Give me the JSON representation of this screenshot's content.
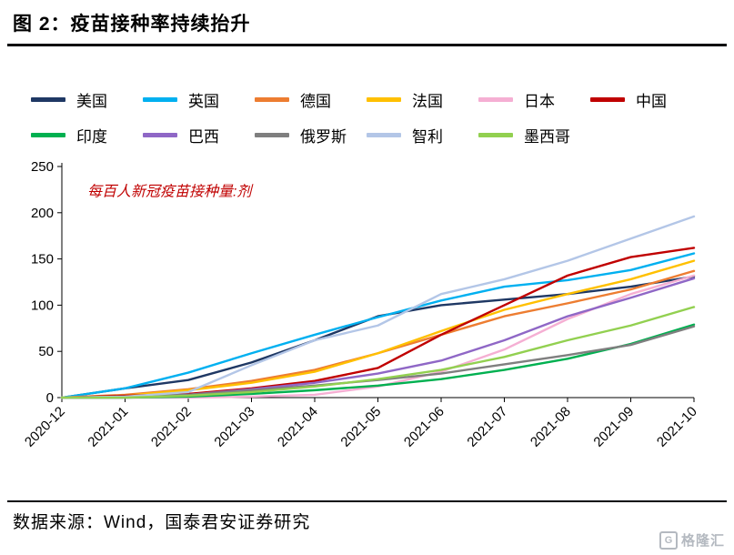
{
  "header": {
    "title": "图 2：疫苗接种率持续抬升"
  },
  "chart_data": {
    "type": "line",
    "title": "图 2：疫苗接种率持续抬升",
    "annotation": "每百人新冠疫苗接种量:剂",
    "annotation_color": "#C00000",
    "x": [
      "2020-12",
      "2021-01",
      "2021-02",
      "2021-03",
      "2021-04",
      "2021-05",
      "2021-06",
      "2021-07",
      "2021-08",
      "2021-09",
      "2021-10"
    ],
    "xlabel": "",
    "ylabel": "",
    "ylim": [
      0,
      250
    ],
    "yticks": [
      0,
      50,
      100,
      150,
      200,
      250
    ],
    "grid": false,
    "legend_position": "top",
    "series": [
      {
        "name": "美国",
        "key": "usa",
        "color": "#1F3864",
        "values": [
          0,
          10,
          19,
          38,
          62,
          88,
          100,
          106,
          112,
          120,
          131
        ]
      },
      {
        "name": "英国",
        "key": "uk",
        "color": "#00B0F0",
        "values": [
          0,
          10,
          27,
          48,
          68,
          87,
          105,
          120,
          127,
          138,
          156
        ]
      },
      {
        "name": "德国",
        "key": "germany",
        "color": "#ED7D31",
        "values": [
          0,
          3,
          9,
          18,
          30,
          48,
          68,
          88,
          102,
          117,
          137
        ]
      },
      {
        "name": "法国",
        "key": "france",
        "color": "#FFC000",
        "values": [
          0,
          2,
          8,
          16,
          28,
          48,
          72,
          95,
          112,
          128,
          148
        ]
      },
      {
        "name": "日本",
        "key": "japan",
        "color": "#F5AFD3",
        "values": [
          0,
          0,
          0,
          1,
          3,
          12,
          28,
          52,
          85,
          112,
          132
        ]
      },
      {
        "name": "中国",
        "key": "china",
        "color": "#C00000",
        "values": [
          0,
          2,
          4,
          10,
          18,
          32,
          68,
          100,
          132,
          152,
          162
        ]
      },
      {
        "name": "印度",
        "key": "india",
        "color": "#00B050",
        "values": [
          0,
          0,
          1,
          4,
          8,
          13,
          20,
          30,
          42,
          58,
          79
        ]
      },
      {
        "name": "巴西",
        "key": "brazil",
        "color": "#8F67C6",
        "values": [
          0,
          0,
          3,
          9,
          16,
          26,
          40,
          62,
          88,
          108,
          129
        ]
      },
      {
        "name": "俄罗斯",
        "key": "russia",
        "color": "#7F7F7F",
        "values": [
          0,
          1,
          3,
          8,
          13,
          19,
          26,
          36,
          46,
          57,
          77
        ]
      },
      {
        "name": "智利",
        "key": "chile",
        "color": "#B3C6E7",
        "values": [
          0,
          1,
          6,
          35,
          62,
          78,
          112,
          128,
          148,
          172,
          196
        ]
      },
      {
        "name": "墨西哥",
        "key": "mexico",
        "color": "#92D050",
        "values": [
          0,
          0,
          2,
          6,
          12,
          20,
          30,
          44,
          62,
          78,
          98
        ]
      }
    ]
  },
  "footer": {
    "source": "数据来源：Wind，国泰君安证券研究"
  },
  "logo": {
    "icon": "G",
    "text": "格隆汇"
  }
}
